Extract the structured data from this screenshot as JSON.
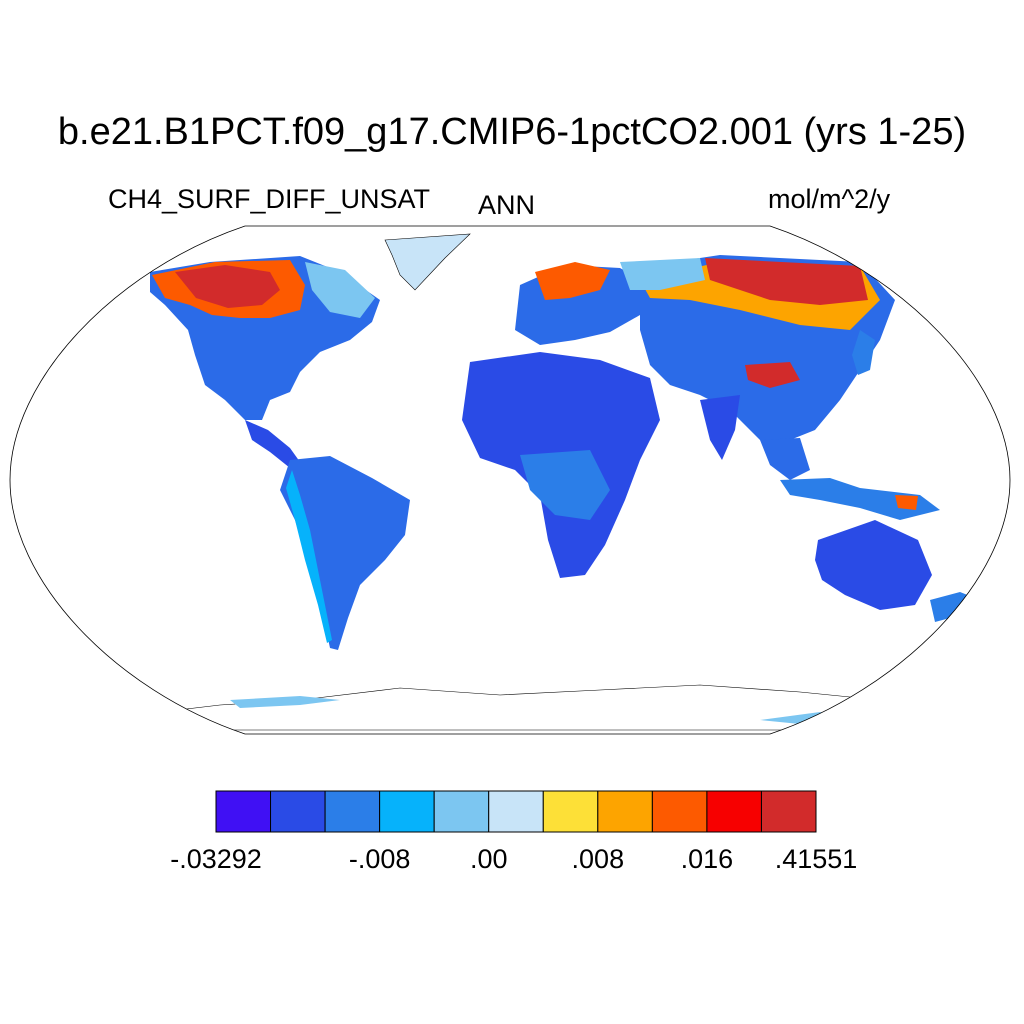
{
  "title": "b.e21.B1PCT.f09_g17.CMIP6-1pctCO2.001 (yrs 1-25)",
  "variable": "CH4_SURF_DIFF_UNSAT",
  "season": "ANN",
  "units": "mol/m^2/y",
  "projection": "Robinson",
  "colorbar": {
    "colors": [
      "#4010f4",
      "#2a4be6",
      "#2b7ee8",
      "#06b2fb",
      "#7cc6f1",
      "#c8e4f8",
      "#fde037",
      "#fda400",
      "#fd5a00",
      "#f70000",
      "#d22b2b"
    ],
    "labels": [
      {
        "text": "-.03292",
        "index": 0
      },
      {
        "text": "-.008",
        "index": 3
      },
      {
        "text": ".00",
        "index": 5
      },
      {
        "text": ".008",
        "index": 7
      },
      {
        "text": ".016",
        "index": 9
      },
      {
        "text": ".41551",
        "index": 11
      }
    ]
  }
}
